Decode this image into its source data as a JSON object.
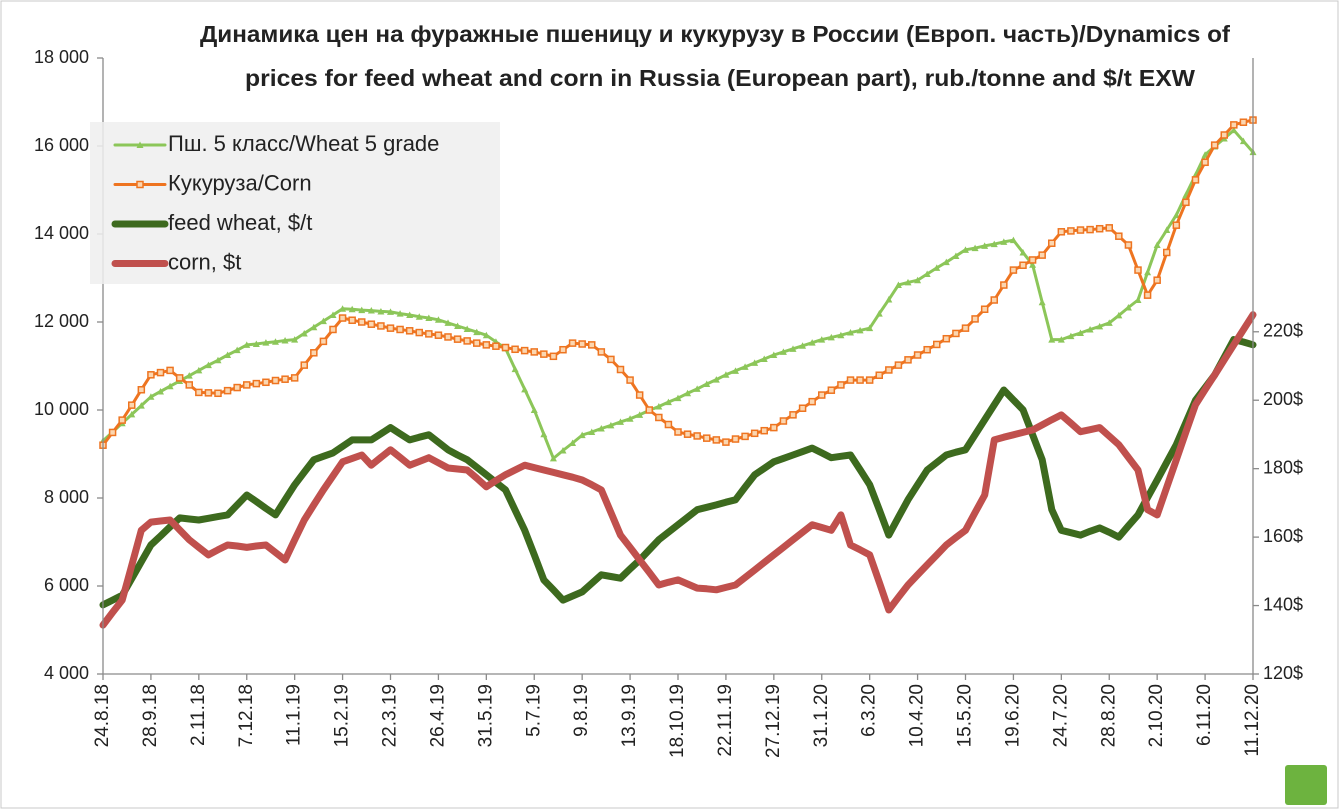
{
  "chart_data": {
    "type": "line",
    "title": [
      "Динамика цен на фуражные пшеницу и кукурузу в России (Европ. часть)/Dynamics of",
      "prices for feed wheat and corn  in Russia (European part), rub./tonne and $/t EXW"
    ],
    "categories": [
      "24.8.18",
      null,
      null,
      null,
      null,
      "28.9.18",
      null,
      null,
      null,
      null,
      "2.11.18",
      null,
      null,
      null,
      null,
      "7.12.18",
      null,
      null,
      null,
      null,
      "11.1.19",
      null,
      null,
      null,
      null,
      "15.2.19",
      null,
      null,
      null,
      null,
      "22.3.19",
      null,
      null,
      null,
      null,
      "26.4.19",
      null,
      null,
      null,
      null,
      "31.5.19",
      null,
      null,
      null,
      null,
      "5.7.19",
      null,
      null,
      null,
      null,
      "9.8.19",
      null,
      null,
      null,
      null,
      "13.9.19",
      null,
      null,
      null,
      null,
      "18.10.19",
      null,
      null,
      null,
      null,
      "22.11.19",
      null,
      null,
      null,
      null,
      "27.12.19",
      null,
      null,
      null,
      null,
      "31.1.20",
      null,
      null,
      null,
      null,
      "6.3.20",
      null,
      null,
      null,
      null,
      "10.4.20",
      null,
      null,
      null,
      null,
      "15.5.20",
      null,
      null,
      null,
      null,
      "19.6.20",
      null,
      null,
      null,
      null,
      "24.7.20",
      null,
      null,
      null,
      null,
      "28.8.20",
      null,
      null,
      null,
      null,
      "2.10.20",
      null,
      null,
      null,
      null,
      "6.11.20",
      null,
      null,
      null,
      null,
      "11.12.20"
    ],
    "ylim": [
      4000,
      18000
    ],
    "yticks": [
      {
        "value": 4000,
        "label": "4 000"
      },
      {
        "value": 6000,
        "label": "6 000"
      },
      {
        "value": 8000,
        "label": "8 000"
      },
      {
        "value": 10000,
        "label": "10 000"
      },
      {
        "value": 12000,
        "label": "12 000"
      },
      {
        "value": 14000,
        "label": "14 000"
      },
      {
        "value": 16000,
        "label": "16 000"
      },
      {
        "value": 18000,
        "label": "18 000"
      }
    ],
    "y2lim": [
      120,
      300
    ],
    "y2ticks": [
      {
        "value": 120,
        "label": "120$"
      },
      {
        "value": 140,
        "label": "140$"
      },
      {
        "value": 160,
        "label": "160$"
      },
      {
        "value": 180,
        "label": "180$"
      },
      {
        "value": 200,
        "label": "200$"
      },
      {
        "value": 220,
        "label": "220$"
      }
    ],
    "legend": "top-left",
    "series": [
      {
        "name": "Пш. 5 класс/Wheat 5 grade",
        "color": "#8cc659",
        "marker": "triangle",
        "width": 3,
        "values": [
          9300,
          9500,
          9700,
          9900,
          10100,
          10300,
          10420,
          10540,
          10660,
          10780,
          10900,
          11020,
          11130,
          11250,
          11360,
          11480,
          11500,
          11530,
          11550,
          11580,
          11600,
          11740,
          11880,
          12020,
          12160,
          12300,
          12290,
          12270,
          12260,
          12240,
          12230,
          12190,
          12160,
          12120,
          12090,
          12050,
          11980,
          11910,
          11840,
          11770,
          11700,
          11550,
          11400,
          10930,
          10470,
          10000,
          9450,
          8900,
          9080,
          9250,
          9430,
          9500,
          9580,
          9650,
          9730,
          9800,
          9890,
          9990,
          10080,
          10180,
          10270,
          10380,
          10480,
          10590,
          10690,
          10800,
          10890,
          10980,
          11070,
          11160,
          11250,
          11320,
          11390,
          11460,
          11530,
          11600,
          11650,
          11700,
          11760,
          11810,
          11860,
          12190,
          12510,
          12840,
          12900,
          12950,
          13090,
          13230,
          13360,
          13500,
          13640,
          13680,
          13730,
          13770,
          13820,
          13860,
          13580,
          13300,
          12450,
          11600,
          11600,
          11680,
          11750,
          11830,
          11900,
          11980,
          12150,
          12330,
          12500,
          13130,
          13750,
          14090,
          14430,
          14890,
          15340,
          15800,
          15990,
          16170,
          16360,
          16110,
          15860
        ]
      },
      {
        "name": "Кукуруза/Corn",
        "color": "#ee7420",
        "marker": "square",
        "width": 3,
        "values": [
          9200,
          9490,
          9770,
          10110,
          10460,
          10800,
          10850,
          10900,
          10730,
          10570,
          10400,
          10390,
          10380,
          10440,
          10510,
          10570,
          10600,
          10630,
          10670,
          10700,
          10730,
          11020,
          11300,
          11560,
          11830,
          12090,
          12040,
          12000,
          11950,
          11910,
          11860,
          11830,
          11800,
          11760,
          11730,
          11700,
          11660,
          11610,
          11570,
          11520,
          11480,
          11450,
          11420,
          11380,
          11350,
          11320,
          11270,
          11220,
          11370,
          11520,
          11500,
          11480,
          11320,
          11150,
          10920,
          10680,
          10340,
          10000,
          9830,
          9670,
          9500,
          9450,
          9410,
          9360,
          9320,
          9270,
          9340,
          9400,
          9470,
          9530,
          9600,
          9750,
          9890,
          10040,
          10190,
          10340,
          10450,
          10570,
          10680,
          10680,
          10680,
          10790,
          10910,
          11020,
          11140,
          11250,
          11370,
          11490,
          11620,
          11740,
          11860,
          12070,
          12290,
          12500,
          12840,
          13180,
          13290,
          13410,
          13520,
          13790,
          14050,
          14070,
          14090,
          14100,
          14120,
          14140,
          13950,
          13750,
          13180,
          12610,
          12950,
          13580,
          14200,
          14720,
          15230,
          15630,
          16020,
          16250,
          16480,
          16540,
          16590
        ]
      },
      {
        "name": "feed wheat, $/t",
        "color": "#3d6a1e",
        "axis": "y2",
        "width": 7,
        "values": [
          140.2,
          141.6,
          143,
          147.9,
          152.8,
          157.7,
          160.3,
          163,
          165.6,
          165.3,
          165,
          165.5,
          166,
          166.5,
          169.4,
          172.3,
          170.4,
          168.4,
          166.5,
          170.9,
          175.3,
          179,
          182.6,
          183.6,
          184.6,
          186.5,
          188.4,
          188.4,
          188.4,
          190.2,
          192,
          190.2,
          188.4,
          189.2,
          189.9,
          187.7,
          185.5,
          184,
          182.6,
          180.4,
          178.2,
          176,
          173.8,
          167.9,
          162,
          154.8,
          147.5,
          144.6,
          141.6,
          142.8,
          144,
          146.5,
          149,
          148.5,
          148,
          150.7,
          153.3,
          156.3,
          159.2,
          161.4,
          163.6,
          165.8,
          168,
          168.7,
          169.4,
          170.2,
          170.9,
          174.6,
          178.2,
          180.1,
          182,
          183,
          184,
          185,
          186,
          184.6,
          183.2,
          183.6,
          184,
          179.7,
          175.3,
          168,
          160.6,
          165.8,
          170.9,
          175.3,
          179.6,
          181.8,
          184,
          184.8,
          185.5,
          189.9,
          194.3,
          198.7,
          203,
          200.1,
          197.2,
          189.9,
          182.6,
          168,
          162,
          161.3,
          160.6,
          161.7,
          162.7,
          161.4,
          160,
          163.3,
          166.5,
          171.6,
          176.7,
          181.9,
          187,
          193.5,
          200,
          203.7,
          207.4,
          212.6,
          217.7,
          217,
          216.2
        ]
      },
      {
        "name": "corn, $t",
        "color": "#c0504d",
        "axis": "y2",
        "width": 7,
        "values": [
          134.3,
          138,
          141.6,
          151.8,
          162,
          164.4,
          164.7,
          165,
          162.1,
          159.2,
          157,
          154.8,
          156.3,
          157.7,
          157.4,
          157,
          157.4,
          157.7,
          155.5,
          153.3,
          159.2,
          165,
          169.4,
          173.8,
          177.9,
          182,
          183,
          184,
          181,
          183.3,
          185.5,
          183.3,
          181,
          182.1,
          183.2,
          181.7,
          180.2,
          179.9,
          179.6,
          177.2,
          174.7,
          176.5,
          178.2,
          179.6,
          181,
          180.3,
          179.6,
          178.9,
          178.2,
          177.5,
          176.7,
          175.3,
          173.8,
          167.2,
          160.6,
          157,
          153.3,
          149.7,
          146,
          146.8,
          147.5,
          146.3,
          145.1,
          144.9,
          144.6,
          145.3,
          146,
          148.2,
          150.4,
          152.6,
          154.8,
          157,
          159.2,
          161.4,
          163.6,
          162.8,
          162,
          166.5,
          157.7,
          156.3,
          154.8,
          146.8,
          138.7,
          142.4,
          146,
          149,
          151.9,
          154.8,
          157.7,
          159.9,
          162,
          167.2,
          172.3,
          188.4,
          189.2,
          189.9,
          190.6,
          191.3,
          192.8,
          194.3,
          195.7,
          193.3,
          190.8,
          191.4,
          192,
          189.5,
          187,
          183.3,
          179.6,
          168,
          166.5,
          174.6,
          182.6,
          190.7,
          198.7,
          203.1,
          207.4,
          211.8,
          216.2,
          220.6,
          225
        ]
      }
    ]
  }
}
